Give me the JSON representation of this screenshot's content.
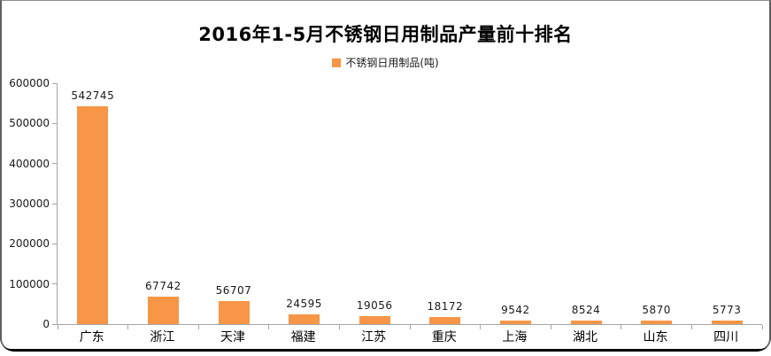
{
  "chart_data": {
    "type": "bar",
    "title": "2016年1-5月不锈钢日用制品产量前十排名",
    "legend": "不锈钢日用制品(吨)",
    "legend_position": "top",
    "series_name": "不锈钢日用制品(吨)",
    "categories": [
      "广东",
      "浙江",
      "天津",
      "福建",
      "江苏",
      "重庆",
      "上海",
      "湖北",
      "山东",
      "四川"
    ],
    "values": [
      542745,
      67742,
      56707,
      24595,
      19056,
      18172,
      9542,
      8524,
      5870,
      5773
    ],
    "xlabel": "",
    "ylabel": "",
    "ylim": [
      0,
      600000
    ],
    "y_ticks": [
      0,
      100000,
      200000,
      300000,
      400000,
      500000,
      600000
    ],
    "grid": false,
    "bar_color": "#F79646",
    "axis_color": "#A6A6A6",
    "text_color": "#1A1A1A"
  }
}
